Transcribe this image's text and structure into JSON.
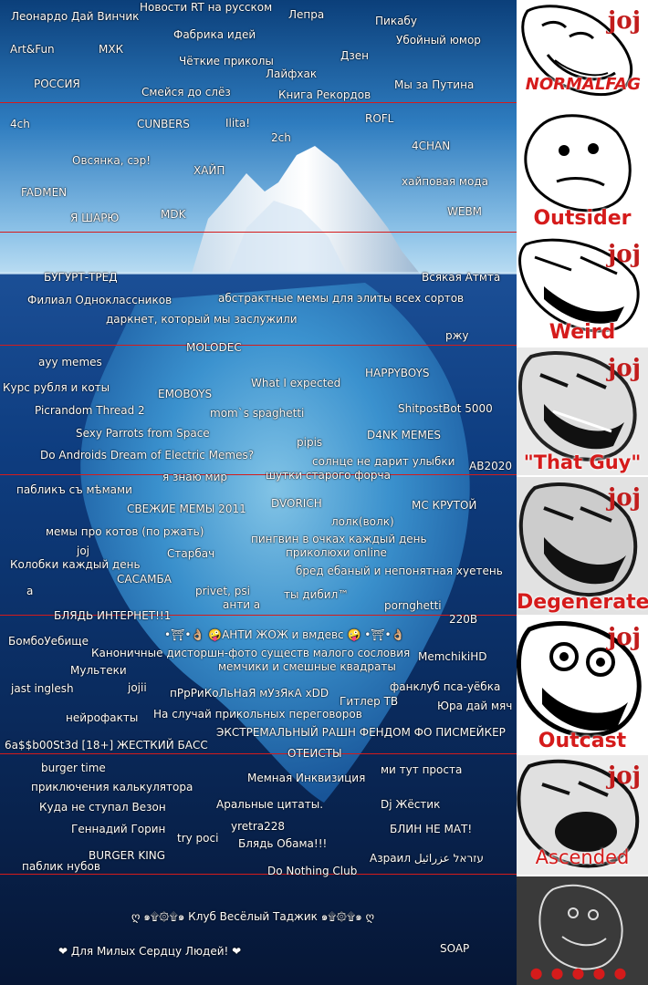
{
  "tiers": [
    {
      "label": "NORMALFAG",
      "items": [
        "Леонардо Дай Винчик",
        "Новости RT на русском",
        "Лепра",
        "Пикабу",
        "Фабрика идей",
        "Убойный юмор",
        "Art&Fun",
        "МХК",
        "Чёткие приколы",
        "Дзен",
        "Лайфхак",
        "РОССИЯ",
        "Смейся до слёз",
        "Книга Рекордов",
        "Мы за Путина"
      ]
    },
    {
      "label": "Outsider",
      "items": [
        "ROFL",
        "4ch",
        "CUNBERS",
        "Ilita!",
        "2ch",
        "4CHAN",
        "Овсянка, сэр!",
        "ХАЙП",
        "хайповая мода",
        "FADMEN",
        "Я ШАРЮ",
        "MDK",
        "WEBM"
      ]
    },
    {
      "label": "Weird",
      "items": [
        "БУГУРТ-ТРЕД",
        "Всякая Атмта",
        "Филиал Одноклассников",
        "абстрактные мемы для элиты всех сортов",
        "даркнет, который мы заслужили",
        "ржу"
      ]
    },
    {
      "label": "\"That Guy\"",
      "items": [
        "MOLODEC",
        "ayy memes",
        "HAPPYBOYS",
        "Курс рубля и коты",
        "What I expected",
        "EMOBOYS",
        "Picrandom Thread 2",
        "mom`s spaghetti",
        "ShitpostBot 5000",
        "Sexy Parrots from Space",
        "D4NK MEMES",
        "pipis",
        "Do Androids Dream of Electric Memes?",
        "солнце не дарит улыбки",
        "AB2020",
        "я знаю мир",
        "шутки старого форча"
      ]
    },
    {
      "label": "Degenerate",
      "items": [
        "пабликъ съ мѣмами",
        "СВЕЖИЕ МЕМЫ 2011",
        "DVORICH",
        "МС КРУТОЙ",
        "лолк(волк)",
        "мемы про котов (по ржать)",
        "пингвин в очках каждый день",
        "joj",
        "Старбач",
        "приколюхи online",
        "Колобки каждый день",
        "бред ебаный и непонятная хуетень",
        "САСАМБА",
        "a",
        "privet, psi",
        "анти а",
        "ты дибил™",
        "pornghetti",
        "БЛЯДЬ ИНТЕРНЕТ!!1",
        "220В"
      ]
    },
    {
      "label": "Outcast",
      "items": [
        "БомбоУебище",
        "•⛩•👌🏼 🤪АНТИ ЖОЖ и вмдевс 🤪 •⛩•👌🏼",
        "Каноничные дисторшн-фото существ малого сословия",
        "MemchikiHD",
        "Мультеки",
        "мемчики и смешные квадраты",
        "jast inglesh",
        "jojii",
        "пРрРиКоЛьНаЯ мУзЯкА xDD",
        "фанклуб пса-уёбка",
        "Гитлер ТВ",
        "Юра дай мяч",
        "нейрофакты",
        "На случай прикольных переговоров",
        "ЭКСТРЕМАЛЬНЫЙ РАШН ФЕНДОМ ФО ПИСМЕЙКЕР",
        "6a$$b00St3d [18+] ЖЕСТКИЙ БАСС",
        "ОТЕИСТЫ"
      ]
    },
    {
      "label": "Ascended",
      "items": [
        "burger time",
        "ми тут проста",
        "Мемная Инквизиция",
        "приключения калькулятора",
        "Куда не ступал Везон",
        "Аральные цитаты.",
        "Dj Жёстик",
        "yretra228",
        "Геннадий Горин",
        "try poci",
        "БЛИН НЕ МАТ!",
        "Блядь Обама!!!",
        "BURGER KING",
        "Азраил עזראל عزرائيل",
        "паблик нубов",
        "Do Nothing Club"
      ]
    },
    {
      "label": "",
      "items": [
        "ღ ๑۩۞۩๑ Клуб Весёлый Таджик ๑۩۞۩๑ ღ",
        "❤ Для Милых Сердцу Людей! ❤",
        "SOAP"
      ]
    }
  ],
  "joj": "joj",
  "colors": {
    "accent": "#d51b1b",
    "ocean": "#0d3a78",
    "sky": "#2b6ea8"
  }
}
